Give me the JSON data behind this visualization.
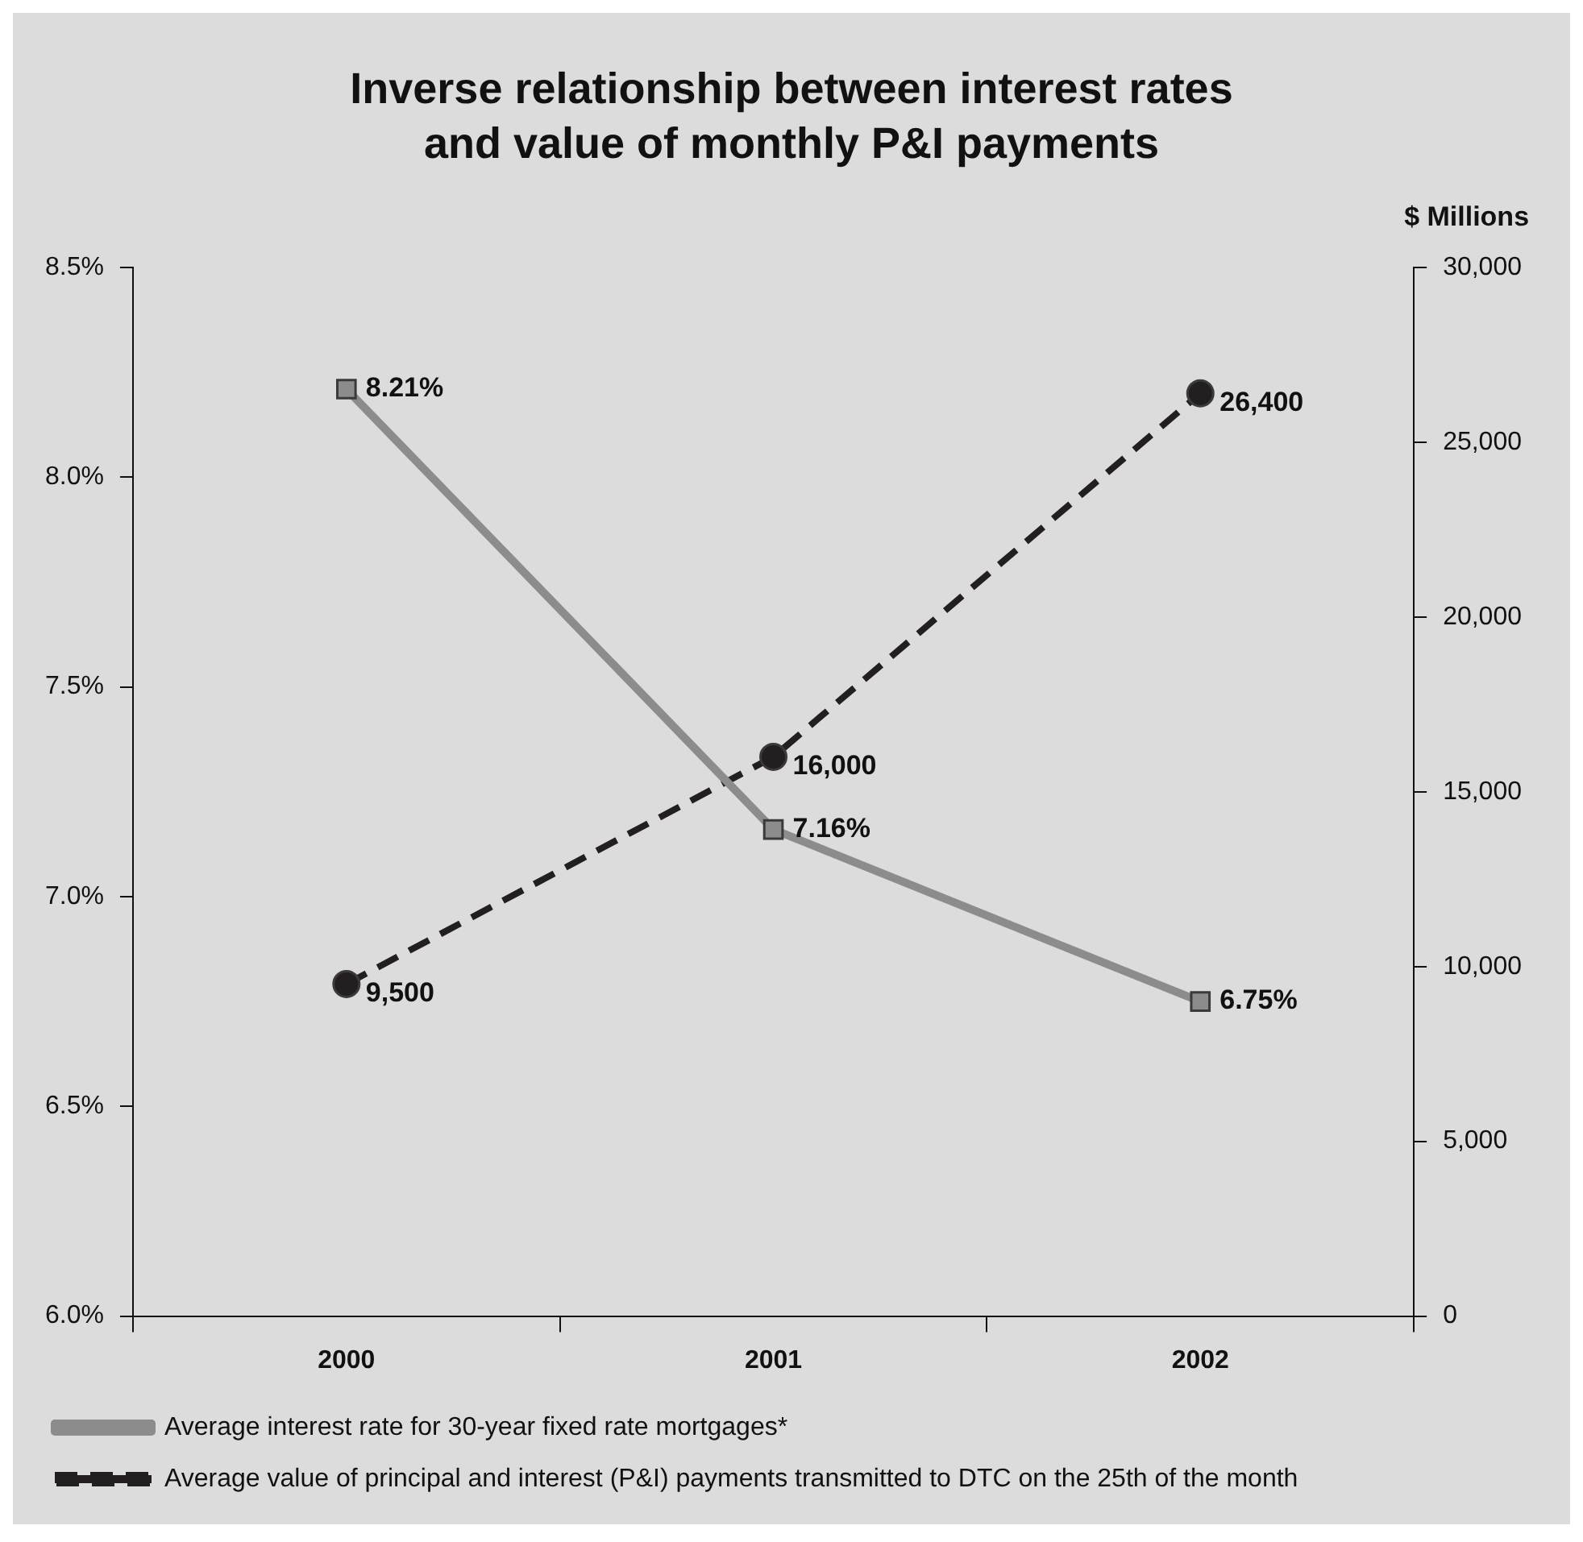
{
  "chart_data": {
    "type": "line",
    "title": "Inverse relationship between interest rates and value of monthly P&I payments",
    "y2label": "$ Millions",
    "categories": [
      "2000",
      "2001",
      "2002"
    ],
    "series": [
      {
        "name": "Average interest rate for 30-year fixed rate mortgages*",
        "color": "#8c8c8c",
        "values": [
          8.21,
          7.16,
          6.75
        ],
        "value_labels": [
          "8.21%",
          "7.16%",
          "6.75%"
        ],
        "marker": "square",
        "line_style": "solid"
      },
      {
        "name": "Average value of principal and interest (P&I) payments transmitted to DTC on the 25th of the month",
        "color": "#231f20",
        "values": [
          9500,
          16000,
          26400
        ],
        "value_labels": [
          "9,500",
          "16,000",
          "26,400"
        ],
        "axis": "y2",
        "marker": "circle",
        "line_style": "dashed"
      }
    ],
    "ylim": [
      6,
      8.5
    ],
    "yticks": [
      {
        "value": 6,
        "label": "6.0%"
      },
      {
        "value": 6.5,
        "label": "6.5%"
      },
      {
        "value": 7,
        "label": "7.0%"
      },
      {
        "value": 7.5,
        "label": "7.5%"
      },
      {
        "value": 8,
        "label": "8.0%"
      },
      {
        "value": 8.5,
        "label": "8.5%"
      }
    ],
    "y2lim": [
      0,
      30000
    ],
    "y2ticks": [
      0,
      {
        "value": 5000,
        "label": "5,000"
      },
      {
        "value": 10000,
        "label": "10,000"
      },
      {
        "value": 15000,
        "label": "15,000"
      },
      {
        "value": 20000,
        "label": "20,000"
      },
      {
        "value": 25000,
        "label": "25,000"
      },
      {
        "value": 30000,
        "label": "30,000"
      }
    ],
    "grid": false,
    "legend": "bottom"
  }
}
